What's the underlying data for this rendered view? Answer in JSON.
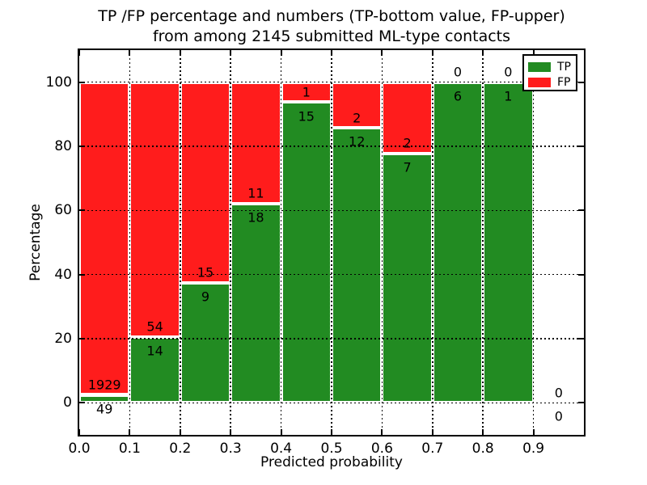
{
  "title": {
    "line1": "TP /FP percentage and numbers (TP-bottom value, FP-upper)",
    "line2": "from among 2145 submitted ML-type contacts"
  },
  "axes": {
    "xlabel": "Predicted probability",
    "ylabel": "Percentage"
  },
  "legend": {
    "items": [
      {
        "label": "TP",
        "color": "#228B22"
      },
      {
        "label": "FP",
        "color": "#FF1C1C"
      }
    ]
  },
  "chart_data": {
    "type": "bar",
    "stacked": true,
    "normalized_to_percent": true,
    "title": "TP /FP percentage and numbers (TP-bottom value, FP-upper) from among 2145 submitted ML-type contacts",
    "xlabel": "Predicted probability",
    "ylabel": "Percentage",
    "xlim": [
      0.0,
      1.0
    ],
    "ylim": [
      -10,
      110
    ],
    "grid": true,
    "grid_style": "dotted",
    "bar_edge_color": "#ffffff",
    "legend_position": "upper right",
    "total_contacts": 2145,
    "x_ticks": {
      "values": [
        0.0,
        0.1,
        0.2,
        0.3,
        0.4,
        0.5,
        0.6,
        0.7,
        0.8,
        0.9
      ],
      "labels": [
        "0.0",
        "0.1",
        "0.2",
        "0.3",
        "0.4",
        "0.5",
        "0.6",
        "0.7",
        "0.8",
        "0.9"
      ]
    },
    "y_ticks": {
      "values": [
        0,
        20,
        40,
        60,
        80,
        100
      ],
      "labels": [
        "0",
        "20",
        "40",
        "60",
        "80",
        "100"
      ]
    },
    "bins": [
      {
        "x0": 0.0,
        "x1": 0.1,
        "tp": 49,
        "fp": 1929,
        "tp_pct": 2.48
      },
      {
        "x0": 0.1,
        "x1": 0.2,
        "tp": 14,
        "fp": 54,
        "tp_pct": 20.59
      },
      {
        "x0": 0.2,
        "x1": 0.3,
        "tp": 9,
        "fp": 15,
        "tp_pct": 37.5
      },
      {
        "x0": 0.3,
        "x1": 0.4,
        "tp": 18,
        "fp": 11,
        "tp_pct": 62.07
      },
      {
        "x0": 0.4,
        "x1": 0.5,
        "tp": 15,
        "fp": 1,
        "tp_pct": 93.75
      },
      {
        "x0": 0.5,
        "x1": 0.6,
        "tp": 12,
        "fp": 2,
        "tp_pct": 85.71
      },
      {
        "x0": 0.6,
        "x1": 0.7,
        "tp": 7,
        "fp": 2,
        "tp_pct": 77.78
      },
      {
        "x0": 0.7,
        "x1": 0.8,
        "tp": 6,
        "fp": 0,
        "tp_pct": 100.0
      },
      {
        "x0": 0.8,
        "x1": 0.9,
        "tp": 1,
        "fp": 0,
        "tp_pct": 100.0
      },
      {
        "x0": 0.9,
        "x1": 1.0,
        "tp": 0,
        "fp": 0,
        "tp_pct": 0.0
      }
    ],
    "series": [
      {
        "name": "TP",
        "color": "#228B22",
        "counts": [
          49,
          14,
          9,
          18,
          15,
          12,
          7,
          6,
          1,
          0
        ]
      },
      {
        "name": "FP",
        "color": "#FF1C1C",
        "counts": [
          1929,
          54,
          15,
          11,
          1,
          2,
          2,
          0,
          0,
          0
        ]
      }
    ]
  }
}
